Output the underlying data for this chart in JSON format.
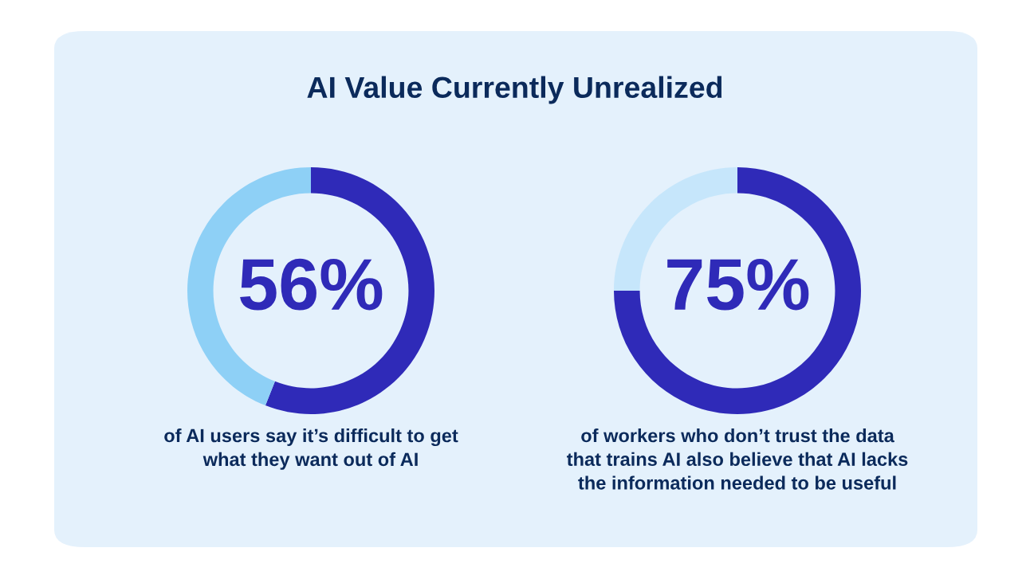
{
  "chart_data": [
    {
      "type": "donut",
      "title": "AI Value Currently Unrealized",
      "categories": [
        null,
        null
      ],
      "values": [
        56,
        44
      ],
      "colors": [
        "#2f2ab8",
        "#8ed0f6"
      ],
      "annotations": [
        "56%",
        "of AI users say it’s difficult to get\nwhat they want out of AI"
      ]
    },
    {
      "type": "donut",
      "categories": [
        null,
        null
      ],
      "values": [
        75,
        25
      ],
      "colors": [
        "#2f2ab8",
        "#c6e6fb"
      ],
      "annotations": [
        "75%",
        "of workers who don’t trust the data\nthat trains AI also believe that AI lacks\nthe information needed to be useful"
      ]
    }
  ]
}
